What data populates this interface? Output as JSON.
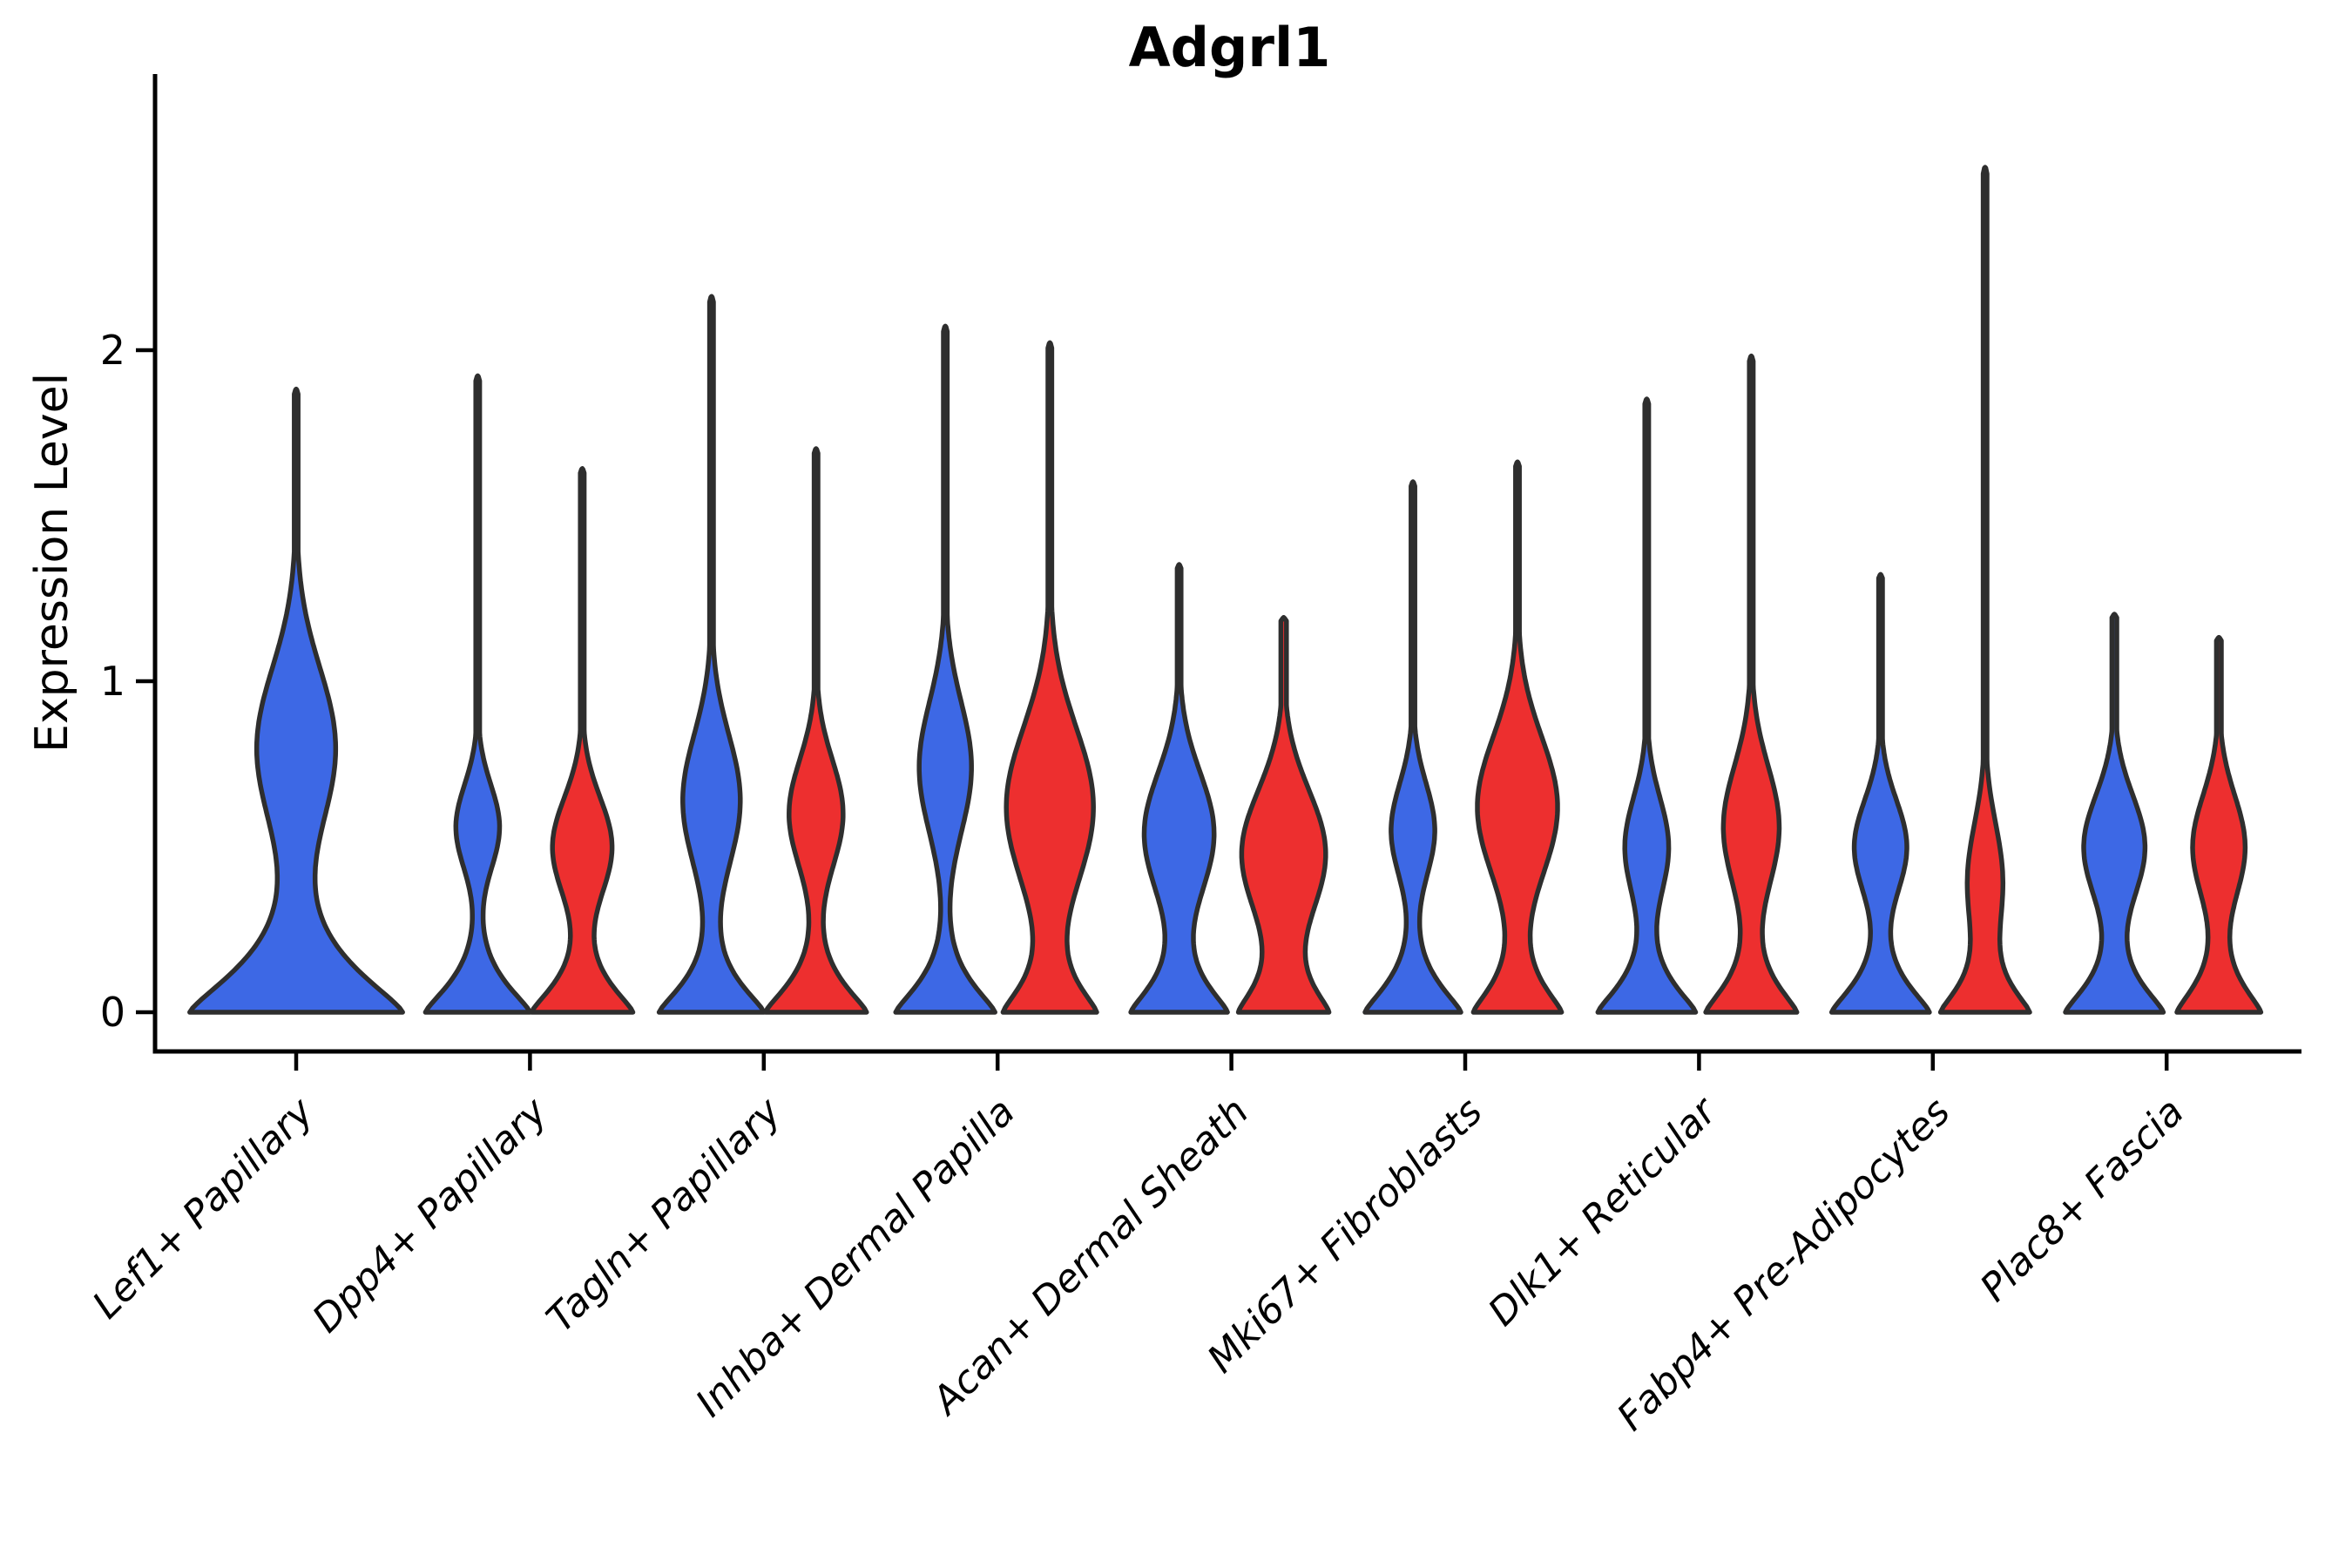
{
  "page": {
    "background": "#ffffff"
  },
  "chart_data": {
    "type": "violin",
    "title": "Adgrl1",
    "ylabel": "Expression Level",
    "yticks": [
      0,
      1,
      2
    ],
    "ylim": [
      -0.05,
      2.75
    ],
    "grid": "off",
    "legend": "none",
    "x_tick_rotation_deg": 45,
    "axis_color": "#000000",
    "outline_color": "#2e2e2e",
    "groups": [
      {
        "id": "blue",
        "color": "#3d68e5"
      },
      {
        "id": "red",
        "color": "#ed2f2f"
      }
    ],
    "categories": [
      "Lef1+ Papillary",
      "Dpp4+ Papillary",
      "Tagln+ Papillary",
      "Inhba+ Dermal Papilla",
      "Acan+ Dermal Sheath",
      "Mki67+ Fibroblasts",
      "Dlk1+ Reticular",
      "Fabp4+ Pre-Adipocytes",
      "Plac8+ Fascia"
    ],
    "violins": [
      {
        "category_index": 0,
        "slug": "lef1",
        "group": "blue",
        "full_width": true,
        "max_expression": 1.88,
        "width_profile": {
          "base_halfwidth": 122,
          "base_spread": 0.2,
          "bulge_halfwidth": 45,
          "bulge_center": 0.8,
          "bulge_spread": 0.34,
          "tip_halfwidth": 2.2
        }
      },
      {
        "category_index": 1,
        "slug": "dpp4",
        "group": "blue",
        "full_width": false,
        "max_expression": 1.92,
        "width_profile": {
          "base_halfwidth": 60,
          "base_spread": 0.13,
          "bulge_halfwidth": 25,
          "bulge_center": 0.56,
          "bulge_spread": 0.18,
          "tip_halfwidth": 2.2
        }
      },
      {
        "category_index": 1,
        "slug": "dpp4",
        "group": "red",
        "full_width": false,
        "max_expression": 1.64,
        "width_profile": {
          "base_halfwidth": 58,
          "base_spread": 0.13,
          "bulge_halfwidth": 34,
          "bulge_center": 0.5,
          "bulge_spread": 0.21,
          "tip_halfwidth": 2.2
        }
      },
      {
        "category_index": 2,
        "slug": "tagln",
        "group": "blue",
        "full_width": false,
        "max_expression": 2.16,
        "width_profile": {
          "base_halfwidth": 60,
          "base_spread": 0.13,
          "bulge_halfwidth": 33,
          "bulge_center": 0.64,
          "bulge_spread": 0.28,
          "tip_halfwidth": 2.2
        }
      },
      {
        "category_index": 2,
        "slug": "tagln",
        "group": "red",
        "full_width": false,
        "max_expression": 1.7,
        "width_profile": {
          "base_halfwidth": 58,
          "base_spread": 0.13,
          "bulge_halfwidth": 31,
          "bulge_center": 0.6,
          "bulge_spread": 0.23,
          "tip_halfwidth": 2.2
        }
      },
      {
        "category_index": 3,
        "slug": "inhba",
        "group": "blue",
        "full_width": false,
        "max_expression": 2.07,
        "width_profile": {
          "base_halfwidth": 57,
          "base_spread": 0.13,
          "bulge_halfwidth": 30,
          "bulge_center": 0.74,
          "bulge_spread": 0.28,
          "tip_halfwidth": 2.2
        }
      },
      {
        "category_index": 3,
        "slug": "inhba",
        "group": "red",
        "full_width": false,
        "max_expression": 2.02,
        "width_profile": {
          "base_halfwidth": 52,
          "base_spread": 0.13,
          "bulge_halfwidth": 50,
          "bulge_center": 0.62,
          "bulge_spread": 0.34,
          "tip_halfwidth": 2.2
        }
      },
      {
        "category_index": 4,
        "slug": "acan",
        "group": "blue",
        "full_width": false,
        "max_expression": 1.35,
        "width_profile": {
          "base_halfwidth": 55,
          "base_spread": 0.13,
          "bulge_halfwidth": 40,
          "bulge_center": 0.54,
          "bulge_spread": 0.26,
          "tip_halfwidth": 2.2
        }
      },
      {
        "category_index": 4,
        "slug": "acan",
        "group": "red",
        "full_width": false,
        "max_expression": 1.19,
        "width_profile": {
          "base_halfwidth": 50,
          "base_spread": 0.13,
          "bulge_halfwidth": 48,
          "bulge_center": 0.48,
          "bulge_spread": 0.27,
          "tip_halfwidth": 3.2
        }
      },
      {
        "category_index": 5,
        "slug": "mki67",
        "group": "blue",
        "full_width": false,
        "max_expression": 1.6,
        "width_profile": {
          "base_halfwidth": 55,
          "base_spread": 0.13,
          "bulge_halfwidth": 25,
          "bulge_center": 0.55,
          "bulge_spread": 0.2,
          "tip_halfwidth": 2.2
        }
      },
      {
        "category_index": 5,
        "slug": "mki67",
        "group": "red",
        "full_width": false,
        "max_expression": 1.66,
        "width_profile": {
          "base_halfwidth": 50,
          "base_spread": 0.13,
          "bulge_halfwidth": 46,
          "bulge_center": 0.62,
          "bulge_spread": 0.3,
          "tip_halfwidth": 2.2
        }
      },
      {
        "category_index": 6,
        "slug": "dlk1",
        "group": "blue",
        "full_width": false,
        "max_expression": 1.85,
        "width_profile": {
          "base_halfwidth": 56,
          "base_spread": 0.13,
          "bulge_halfwidth": 25,
          "bulge_center": 0.5,
          "bulge_spread": 0.21,
          "tip_halfwidth": 2.2
        }
      },
      {
        "category_index": 6,
        "slug": "dlk1",
        "group": "red",
        "full_width": false,
        "max_expression": 1.98,
        "width_profile": {
          "base_halfwidth": 52,
          "base_spread": 0.13,
          "bulge_halfwidth": 32,
          "bulge_center": 0.56,
          "bulge_spread": 0.26,
          "tip_halfwidth": 2.2
        }
      },
      {
        "category_index": 7,
        "slug": "fabp4",
        "group": "blue",
        "full_width": false,
        "max_expression": 1.32,
        "width_profile": {
          "base_halfwidth": 56,
          "base_spread": 0.13,
          "bulge_halfwidth": 30,
          "bulge_center": 0.5,
          "bulge_spread": 0.2,
          "tip_halfwidth": 2.2
        }
      },
      {
        "category_index": 7,
        "slug": "fabp4",
        "group": "red",
        "full_width": false,
        "max_expression": 2.55,
        "width_profile": {
          "base_halfwidth": 50,
          "base_spread": 0.12,
          "bulge_halfwidth": 20,
          "bulge_center": 0.4,
          "bulge_spread": 0.24,
          "tip_halfwidth": 2.2
        }
      },
      {
        "category_index": 8,
        "slug": "plac8",
        "group": "blue",
        "full_width": false,
        "max_expression": 1.2,
        "width_profile": {
          "base_halfwidth": 56,
          "base_spread": 0.13,
          "bulge_halfwidth": 35,
          "bulge_center": 0.5,
          "bulge_spread": 0.22,
          "tip_halfwidth": 2.8
        }
      },
      {
        "category_index": 8,
        "slug": "plac8",
        "group": "red",
        "full_width": false,
        "max_expression": 1.13,
        "width_profile": {
          "base_halfwidth": 48,
          "base_spread": 0.13,
          "bulge_halfwidth": 30,
          "bulge_center": 0.5,
          "bulge_spread": 0.22,
          "tip_halfwidth": 2.8
        }
      }
    ]
  }
}
